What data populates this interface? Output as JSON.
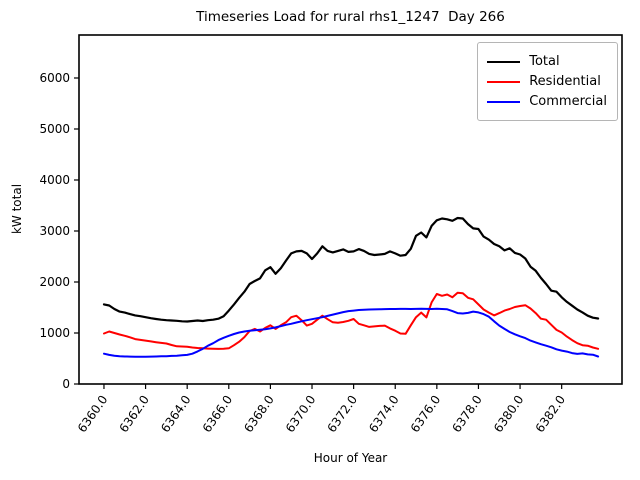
{
  "chart_data": {
    "type": "line",
    "title": "Timeseries Load for rural rhs1_1247  Day 266",
    "xlabel": "Hour of Year",
    "ylabel": "kW total",
    "x_start": 6360.0,
    "x_step": 0.25,
    "xlim": [
      6358.8,
      6384.9
    ],
    "ylim": [
      0,
      6843
    ],
    "grid": false,
    "x_ticks": {
      "values": [
        6360,
        6362,
        6364,
        6366,
        6368,
        6370,
        6372,
        6374,
        6376,
        6378,
        6380,
        6382
      ],
      "labels": [
        "6360.0",
        "6362.0",
        "6364.0",
        "6366.0",
        "6368.0",
        "6370.0",
        "6372.0",
        "6374.0",
        "6376.0",
        "6378.0",
        "6380.0",
        "6382.0"
      ]
    },
    "y_ticks": {
      "values": [
        0,
        1000,
        2000,
        3000,
        4000,
        5000,
        6000
      ],
      "labels": [
        "0",
        "1000",
        "2000",
        "3000",
        "4000",
        "5000",
        "6000"
      ]
    },
    "legend": {
      "position": "upper right"
    },
    "series": [
      {
        "name": "Total",
        "color": "#000000",
        "linewidth": 2.2,
        "values": [
          1560,
          1540,
          1470,
          1420,
          1400,
          1370,
          1345,
          1330,
          1310,
          1290,
          1275,
          1260,
          1250,
          1245,
          1240,
          1230,
          1225,
          1235,
          1245,
          1235,
          1250,
          1260,
          1280,
          1330,
          1440,
          1560,
          1690,
          1810,
          1960,
          2020,
          2070,
          2230,
          2290,
          2160,
          2270,
          2420,
          2560,
          2600,
          2610,
          2560,
          2450,
          2560,
          2700,
          2610,
          2580,
          2610,
          2640,
          2590,
          2600,
          2645,
          2610,
          2550,
          2530,
          2540,
          2550,
          2600,
          2560,
          2515,
          2530,
          2650,
          2905,
          2970,
          2875,
          3100,
          3210,
          3245,
          3230,
          3200,
          3255,
          3245,
          3135,
          3050,
          3040,
          2890,
          2830,
          2745,
          2700,
          2620,
          2660,
          2570,
          2540,
          2460,
          2300,
          2220,
          2080,
          1960,
          1830,
          1810,
          1700,
          1610,
          1535,
          1460,
          1404,
          1340,
          1300,
          1285
        ]
      },
      {
        "name": "Residential",
        "color": "#ff0000",
        "linewidth": 2,
        "values": [
          990,
          1030,
          1000,
          970,
          945,
          915,
          880,
          865,
          850,
          835,
          820,
          805,
          795,
          765,
          740,
          735,
          730,
          715,
          705,
          700,
          695,
          690,
          688,
          690,
          700,
          760,
          830,
          920,
          1040,
          1080,
          1030,
          1100,
          1150,
          1080,
          1150,
          1210,
          1310,
          1340,
          1250,
          1145,
          1180,
          1260,
          1340,
          1270,
          1210,
          1200,
          1215,
          1240,
          1275,
          1180,
          1150,
          1120,
          1130,
          1140,
          1145,
          1090,
          1045,
          990,
          985,
          1150,
          1310,
          1400,
          1305,
          1600,
          1765,
          1730,
          1755,
          1700,
          1790,
          1780,
          1690,
          1660,
          1560,
          1460,
          1400,
          1345,
          1390,
          1440,
          1470,
          1510,
          1530,
          1545,
          1480,
          1390,
          1280,
          1260,
          1160,
          1060,
          1010,
          930,
          860,
          800,
          760,
          750,
          715,
          690
        ]
      },
      {
        "name": "Commercial",
        "color": "#0000ff",
        "linewidth": 2,
        "values": [
          595,
          570,
          555,
          545,
          540,
          538,
          535,
          535,
          535,
          538,
          540,
          543,
          545,
          550,
          555,
          562,
          570,
          595,
          640,
          690,
          750,
          800,
          860,
          905,
          945,
          980,
          1010,
          1030,
          1045,
          1055,
          1065,
          1075,
          1090,
          1110,
          1135,
          1160,
          1180,
          1205,
          1230,
          1250,
          1270,
          1290,
          1310,
          1335,
          1360,
          1385,
          1410,
          1430,
          1440,
          1450,
          1455,
          1460,
          1462,
          1465,
          1468,
          1470,
          1470,
          1472,
          1472,
          1470,
          1472,
          1475,
          1472,
          1470,
          1475,
          1470,
          1465,
          1430,
          1390,
          1382,
          1395,
          1420,
          1404,
          1370,
          1320,
          1230,
          1145,
          1080,
          1020,
          975,
          935,
          900,
          850,
          815,
          780,
          750,
          720,
          680,
          655,
          635,
          605,
          590,
          600,
          580,
          574,
          540
        ]
      }
    ]
  }
}
